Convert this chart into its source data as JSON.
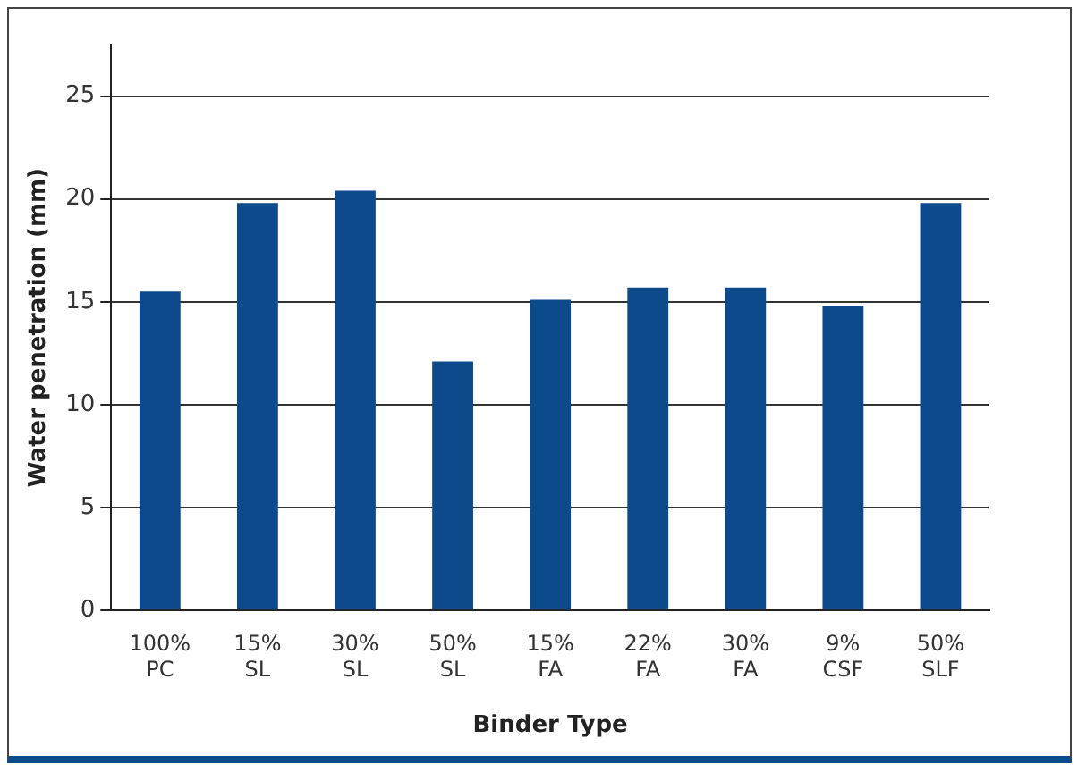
{
  "chart_data": {
    "type": "bar",
    "xlabel": "Binder Type",
    "ylabel": "Water penetration (mm)",
    "categories": [
      "100% PC",
      "15% SL",
      "30% SL",
      "50% SL",
      "15% FA",
      "22% FA",
      "30% FA",
      "9% CSF",
      "50% SLF"
    ],
    "values": [
      15.5,
      19.8,
      20.4,
      12.1,
      15.1,
      15.7,
      15.7,
      14.8,
      19.8
    ],
    "color": "#0d4a8c",
    "ylim": [
      0,
      27.5
    ],
    "yticks": [
      0,
      5,
      10,
      15,
      20,
      25
    ],
    "grid": "y",
    "legend": false
  }
}
